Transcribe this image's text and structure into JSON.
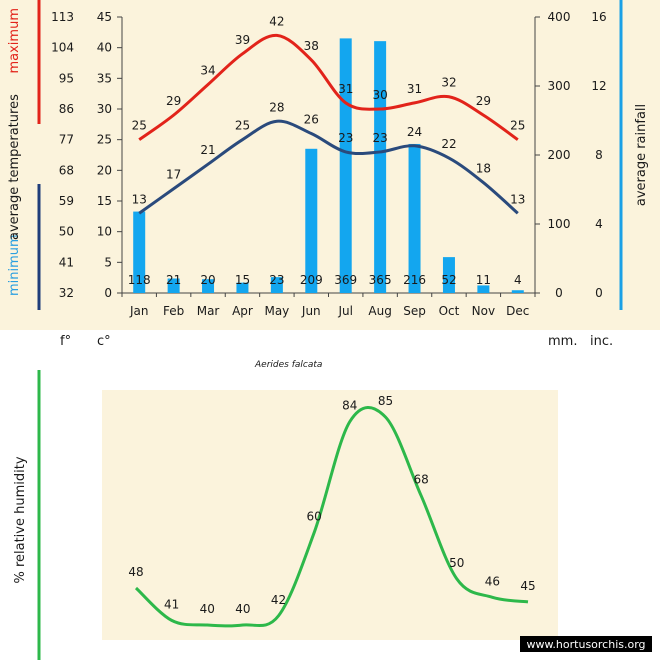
{
  "colors": {
    "background": "#fbf3dc",
    "max_line": "#e2231a",
    "min_line": "#2a4a7c",
    "rain_bar": "#13a6ef",
    "humidity_line": "#2db84a",
    "frame_min": "#1f3d7a",
    "frame_rain": "#1aa0e6",
    "frame_humidity": "#2db84a"
  },
  "labels": {
    "maximum": "maximum",
    "average_temperatures": "average temperatures",
    "minimum": "minimum",
    "average_rainfall": "average rainfall",
    "fahrenheit_unit": "f°",
    "celsius_unit": "c°",
    "mm_unit": "mm.",
    "inch_unit": "inc.",
    "species": "Aerides falcata",
    "humidity_axis": "% relative humidity",
    "watermark": "www.hortusorchis.org"
  },
  "chart_data": [
    {
      "type": "bar+line",
      "title": "",
      "categories": [
        "Jan",
        "Feb",
        "Mar",
        "Apr",
        "May",
        "Jun",
        "Jul",
        "Aug",
        "Sep",
        "Oct",
        "Nov",
        "Dec"
      ],
      "temperature_axis": {
        "fahrenheit_ticks": [
          32,
          41,
          50,
          59,
          68,
          77,
          86,
          95,
          104,
          113
        ],
        "celsius_ticks": [
          0,
          5,
          10,
          15,
          20,
          25,
          30,
          35,
          40,
          45
        ],
        "celsius_range": [
          0,
          45
        ]
      },
      "rainfall_axis": {
        "mm_ticks": [
          0,
          100,
          200,
          300,
          400
        ],
        "inch_ticks": [
          0,
          4,
          8,
          12,
          16
        ],
        "mm_range": [
          0,
          400
        ]
      },
      "series": [
        {
          "name": "maximum",
          "kind": "line",
          "unit": "c",
          "values": [
            25,
            29,
            34,
            39,
            42,
            38,
            31,
            30,
            31,
            32,
            29,
            25
          ]
        },
        {
          "name": "minimum",
          "kind": "line",
          "unit": "c",
          "values": [
            13,
            17,
            21,
            25,
            28,
            26,
            23,
            23,
            24,
            22,
            18,
            13
          ]
        },
        {
          "name": "average rainfall",
          "kind": "bar",
          "unit": "mm",
          "values": [
            118,
            21,
            20,
            15,
            23,
            209,
            369,
            365,
            216,
            52,
            11,
            4
          ]
        }
      ]
    },
    {
      "type": "line",
      "title": "",
      "ylabel": "% relative humidity",
      "series": [
        {
          "name": "relative humidity",
          "values": [
            48,
            41,
            40,
            40,
            42,
            60,
            84,
            85,
            68,
            50,
            46,
            45
          ]
        }
      ]
    }
  ]
}
